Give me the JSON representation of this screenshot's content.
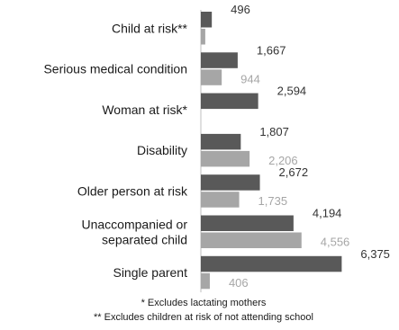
{
  "chart_data": {
    "type": "bar",
    "orientation": "horizontal",
    "categories": [
      [
        "Child at risk**"
      ],
      [
        "Serious medical condition"
      ],
      [
        "Woman at risk*"
      ],
      [
        "Disability"
      ],
      [
        "Older person at risk"
      ],
      [
        "Unaccompanied or",
        "separated child"
      ],
      [
        "Single parent"
      ]
    ],
    "series": [
      {
        "color": "#595959",
        "label_color": "#333333",
        "values": [
          496,
          1667,
          2594,
          1807,
          2672,
          4194,
          6375
        ],
        "labels": [
          "496",
          "1,667",
          "2,594",
          "1,807",
          "2,672",
          "4,194",
          "6,375"
        ]
      },
      {
        "color": "#a6a6a6",
        "label_color": "#a6a6a6",
        "values": [
          200,
          944,
          null,
          2206,
          1735,
          4556,
          406
        ],
        "labels": [
          "",
          "944",
          "",
          "2,206",
          "1,735",
          "4,556",
          "406"
        ]
      }
    ],
    "xlim": [
      0,
      6400
    ],
    "grid": false,
    "legend": "none"
  },
  "footnotes": [
    "* Excludes lactating mothers",
    "** Excludes children at risk of not attending school"
  ],
  "colors": {
    "axis": "#bfbfbf"
  }
}
